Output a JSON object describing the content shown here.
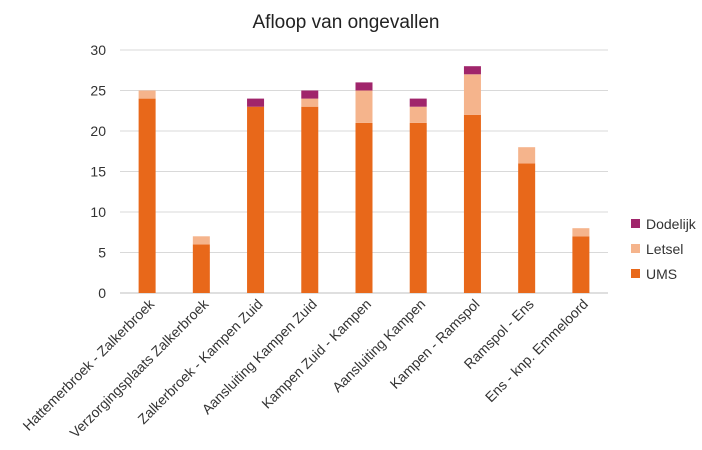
{
  "chart_data": {
    "type": "bar",
    "stacked": true,
    "title": "Afloop van ongevallen",
    "xlabel": "",
    "ylabel": "",
    "ylim": [
      0,
      30
    ],
    "yticks": [
      0,
      5,
      10,
      15,
      20,
      25,
      30
    ],
    "grid": true,
    "legend_position": "right",
    "categories": [
      "Hattemerbroek - Zalkerbroek",
      "Verzorgingsplaats Zalkerbroek",
      "Zalkerbroek - Kampen Zuid",
      "Aansluiting Kampen Zuid",
      "Kampen Zuid - Kampen",
      "Aansluiting Kampen",
      "Kampen - Ramspol",
      "Ramspol - Ens",
      "Ens - knp. Emmeloord"
    ],
    "series": [
      {
        "name": "UMS",
        "color": "#E8681A",
        "values": [
          24,
          6,
          23,
          23,
          21,
          21,
          22,
          16,
          7
        ]
      },
      {
        "name": "Letsel",
        "color": "#F5B48C",
        "values": [
          1,
          1,
          0,
          1,
          4,
          2,
          5,
          2,
          1
        ]
      },
      {
        "name": "Dodelijk",
        "color": "#A0256B",
        "values": [
          0,
          0,
          1,
          1,
          1,
          1,
          1,
          0,
          0
        ]
      }
    ]
  }
}
